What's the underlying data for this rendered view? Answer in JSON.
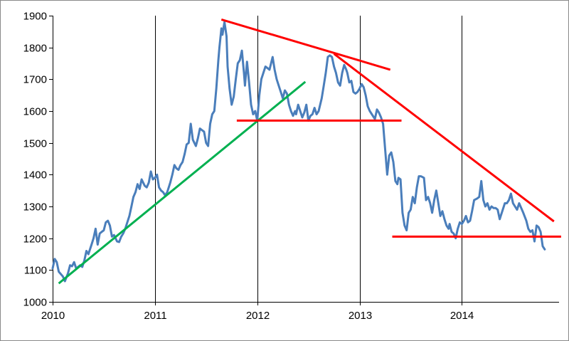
{
  "chart_data": {
    "type": "line",
    "title": "",
    "xlabel": "",
    "ylabel": "",
    "xlim": [
      2010.0,
      2014.95
    ],
    "ylim": [
      1000,
      1900
    ],
    "x_ticks": [
      {
        "value": 2010,
        "label": "2010"
      },
      {
        "value": 2011,
        "label": "2011"
      },
      {
        "value": 2012,
        "label": "2012"
      },
      {
        "value": 2013,
        "label": "2013"
      },
      {
        "value": 2014,
        "label": "2014"
      }
    ],
    "y_ticks": [
      {
        "value": 1000,
        "label": "1000"
      },
      {
        "value": 1100,
        "label": "1100"
      },
      {
        "value": 1200,
        "label": "1200"
      },
      {
        "value": 1300,
        "label": "1300"
      },
      {
        "value": 1400,
        "label": "1400"
      },
      {
        "value": 1500,
        "label": "1500"
      },
      {
        "value": 1600,
        "label": "1600"
      },
      {
        "value": 1700,
        "label": "1700"
      },
      {
        "value": 1800,
        "label": "1800"
      },
      {
        "value": 1900,
        "label": "1900"
      }
    ],
    "grid": {
      "vertical": true,
      "horizontal": false,
      "color": "#000000"
    },
    "series": [
      {
        "color": "#4a7ebb",
        "points": [
          [
            2010.0,
            1105
          ],
          [
            2010.02,
            1135
          ],
          [
            2010.04,
            1125
          ],
          [
            2010.06,
            1095
          ],
          [
            2010.1,
            1080
          ],
          [
            2010.12,
            1065
          ],
          [
            2010.15,
            1090
          ],
          [
            2010.17,
            1115
          ],
          [
            2010.19,
            1112
          ],
          [
            2010.21,
            1125
          ],
          [
            2010.23,
            1105
          ],
          [
            2010.27,
            1115
          ],
          [
            2010.29,
            1110
          ],
          [
            2010.31,
            1130
          ],
          [
            2010.33,
            1160
          ],
          [
            2010.35,
            1150
          ],
          [
            2010.38,
            1180
          ],
          [
            2010.4,
            1200
          ],
          [
            2010.42,
            1230
          ],
          [
            2010.44,
            1180
          ],
          [
            2010.46,
            1215
          ],
          [
            2010.48,
            1220
          ],
          [
            2010.5,
            1225
          ],
          [
            2010.52,
            1250
          ],
          [
            2010.54,
            1255
          ],
          [
            2010.56,
            1240
          ],
          [
            2010.58,
            1205
          ],
          [
            2010.6,
            1210
          ],
          [
            2010.63,
            1190
          ],
          [
            2010.65,
            1188
          ],
          [
            2010.67,
            1205
          ],
          [
            2010.69,
            1215
          ],
          [
            2010.71,
            1230
          ],
          [
            2010.73,
            1250
          ],
          [
            2010.75,
            1270
          ],
          [
            2010.77,
            1300
          ],
          [
            2010.79,
            1330
          ],
          [
            2010.81,
            1345
          ],
          [
            2010.83,
            1370
          ],
          [
            2010.85,
            1355
          ],
          [
            2010.87,
            1385
          ],
          [
            2010.9,
            1365
          ],
          [
            2010.92,
            1360
          ],
          [
            2010.94,
            1375
          ],
          [
            2010.96,
            1410
          ],
          [
            2010.98,
            1385
          ],
          [
            2011.0,
            1390
          ],
          [
            2011.02,
            1400
          ],
          [
            2011.04,
            1360
          ],
          [
            2011.06,
            1350
          ],
          [
            2011.08,
            1345
          ],
          [
            2011.1,
            1335
          ],
          [
            2011.12,
            1345
          ],
          [
            2011.15,
            1375
          ],
          [
            2011.17,
            1400
          ],
          [
            2011.19,
            1430
          ],
          [
            2011.21,
            1420
          ],
          [
            2011.23,
            1415
          ],
          [
            2011.25,
            1430
          ],
          [
            2011.27,
            1440
          ],
          [
            2011.29,
            1465
          ],
          [
            2011.31,
            1495
          ],
          [
            2011.33,
            1500
          ],
          [
            2011.35,
            1560
          ],
          [
            2011.37,
            1510
          ],
          [
            2011.4,
            1490
          ],
          [
            2011.42,
            1515
          ],
          [
            2011.44,
            1545
          ],
          [
            2011.46,
            1540
          ],
          [
            2011.48,
            1535
          ],
          [
            2011.5,
            1500
          ],
          [
            2011.52,
            1490
          ],
          [
            2011.54,
            1560
          ],
          [
            2011.56,
            1590
          ],
          [
            2011.58,
            1600
          ],
          [
            2011.6,
            1670
          ],
          [
            2011.62,
            1760
          ],
          [
            2011.63,
            1800
          ],
          [
            2011.65,
            1860
          ],
          [
            2011.66,
            1840
          ],
          [
            2011.68,
            1880
          ],
          [
            2011.7,
            1835
          ],
          [
            2011.71,
            1740
          ],
          [
            2011.73,
            1670
          ],
          [
            2011.75,
            1620
          ],
          [
            2011.77,
            1645
          ],
          [
            2011.79,
            1700
          ],
          [
            2011.81,
            1750
          ],
          [
            2011.83,
            1760
          ],
          [
            2011.85,
            1790
          ],
          [
            2011.87,
            1720
          ],
          [
            2011.88,
            1680
          ],
          [
            2011.9,
            1755
          ],
          [
            2011.92,
            1690
          ],
          [
            2011.94,
            1620
          ],
          [
            2011.96,
            1590
          ],
          [
            2011.98,
            1600
          ],
          [
            2012.0,
            1570
          ],
          [
            2012.02,
            1650
          ],
          [
            2012.04,
            1700
          ],
          [
            2012.06,
            1720
          ],
          [
            2012.08,
            1740
          ],
          [
            2012.1,
            1735
          ],
          [
            2012.12,
            1730
          ],
          [
            2012.15,
            1770
          ],
          [
            2012.17,
            1730
          ],
          [
            2012.19,
            1700
          ],
          [
            2012.21,
            1680
          ],
          [
            2012.23,
            1660
          ],
          [
            2012.25,
            1640
          ],
          [
            2012.27,
            1665
          ],
          [
            2012.29,
            1655
          ],
          [
            2012.31,
            1620
          ],
          [
            2012.33,
            1600
          ],
          [
            2012.35,
            1585
          ],
          [
            2012.37,
            1600
          ],
          [
            2012.38,
            1590
          ],
          [
            2012.4,
            1620
          ],
          [
            2012.42,
            1600
          ],
          [
            2012.44,
            1580
          ],
          [
            2012.46,
            1595
          ],
          [
            2012.48,
            1620
          ],
          [
            2012.5,
            1570
          ],
          [
            2012.52,
            1585
          ],
          [
            2012.54,
            1590
          ],
          [
            2012.56,
            1610
          ],
          [
            2012.58,
            1590
          ],
          [
            2012.6,
            1600
          ],
          [
            2012.63,
            1640
          ],
          [
            2012.65,
            1680
          ],
          [
            2012.67,
            1720
          ],
          [
            2012.69,
            1770
          ],
          [
            2012.71,
            1775
          ],
          [
            2012.73,
            1770
          ],
          [
            2012.75,
            1740
          ],
          [
            2012.77,
            1720
          ],
          [
            2012.79,
            1690
          ],
          [
            2012.81,
            1680
          ],
          [
            2012.83,
            1720
          ],
          [
            2012.85,
            1745
          ],
          [
            2012.87,
            1730
          ],
          [
            2012.88,
            1720
          ],
          [
            2012.9,
            1690
          ],
          [
            2012.92,
            1695
          ],
          [
            2012.94,
            1660
          ],
          [
            2012.96,
            1655
          ],
          [
            2012.98,
            1660
          ],
          [
            2013.0,
            1670
          ],
          [
            2013.02,
            1685
          ],
          [
            2013.04,
            1675
          ],
          [
            2013.06,
            1650
          ],
          [
            2013.08,
            1615
          ],
          [
            2013.1,
            1600
          ],
          [
            2013.12,
            1590
          ],
          [
            2013.15,
            1575
          ],
          [
            2013.17,
            1605
          ],
          [
            2013.19,
            1595
          ],
          [
            2013.21,
            1580
          ],
          [
            2013.23,
            1560
          ],
          [
            2013.25,
            1480
          ],
          [
            2013.27,
            1400
          ],
          [
            2013.29,
            1460
          ],
          [
            2013.31,
            1470
          ],
          [
            2013.33,
            1440
          ],
          [
            2013.35,
            1380
          ],
          [
            2013.37,
            1370
          ],
          [
            2013.38,
            1390
          ],
          [
            2013.4,
            1385
          ],
          [
            2013.42,
            1280
          ],
          [
            2013.44,
            1240
          ],
          [
            2013.46,
            1225
          ],
          [
            2013.48,
            1280
          ],
          [
            2013.5,
            1290
          ],
          [
            2013.52,
            1330
          ],
          [
            2013.54,
            1310
          ],
          [
            2013.56,
            1360
          ],
          [
            2013.58,
            1395
          ],
          [
            2013.6,
            1395
          ],
          [
            2013.63,
            1390
          ],
          [
            2013.65,
            1320
          ],
          [
            2013.67,
            1330
          ],
          [
            2013.69,
            1310
          ],
          [
            2013.71,
            1280
          ],
          [
            2013.73,
            1320
          ],
          [
            2013.75,
            1350
          ],
          [
            2013.77,
            1310
          ],
          [
            2013.79,
            1270
          ],
          [
            2013.81,
            1285
          ],
          [
            2013.83,
            1260
          ],
          [
            2013.85,
            1240
          ],
          [
            2013.87,
            1230
          ],
          [
            2013.88,
            1245
          ],
          [
            2013.9,
            1220
          ],
          [
            2013.92,
            1215
          ],
          [
            2013.94,
            1200
          ],
          [
            2013.96,
            1230
          ],
          [
            2013.98,
            1250
          ],
          [
            2014.0,
            1245
          ],
          [
            2014.02,
            1255
          ],
          [
            2014.04,
            1270
          ],
          [
            2014.06,
            1250
          ],
          [
            2014.08,
            1255
          ],
          [
            2014.1,
            1285
          ],
          [
            2014.12,
            1320
          ],
          [
            2014.15,
            1325
          ],
          [
            2014.17,
            1330
          ],
          [
            2014.19,
            1380
          ],
          [
            2014.21,
            1320
          ],
          [
            2014.23,
            1300
          ],
          [
            2014.25,
            1310
          ],
          [
            2014.27,
            1290
          ],
          [
            2014.29,
            1300
          ],
          [
            2014.31,
            1295
          ],
          [
            2014.33,
            1295
          ],
          [
            2014.35,
            1290
          ],
          [
            2014.37,
            1260
          ],
          [
            2014.38,
            1270
          ],
          [
            2014.4,
            1290
          ],
          [
            2014.42,
            1310
          ],
          [
            2014.44,
            1310
          ],
          [
            2014.46,
            1320
          ],
          [
            2014.48,
            1340
          ],
          [
            2014.5,
            1310
          ],
          [
            2014.52,
            1300
          ],
          [
            2014.54,
            1290
          ],
          [
            2014.56,
            1310
          ],
          [
            2014.58,
            1295
          ],
          [
            2014.6,
            1280
          ],
          [
            2014.63,
            1255
          ],
          [
            2014.65,
            1230
          ],
          [
            2014.67,
            1220
          ],
          [
            2014.69,
            1225
          ],
          [
            2014.71,
            1190
          ],
          [
            2014.73,
            1240
          ],
          [
            2014.75,
            1235
          ],
          [
            2014.77,
            1220
          ],
          [
            2014.79,
            1175
          ],
          [
            2014.81,
            1165
          ]
        ]
      }
    ],
    "trendlines": [
      {
        "color": "#00b050",
        "from": [
          2010.06,
          1058
        ],
        "to": [
          2012.47,
          1692
        ]
      },
      {
        "color": "#ff0000",
        "from": [
          2011.65,
          1888
        ],
        "to": [
          2013.3,
          1730
        ]
      },
      {
        "color": "#ff0000",
        "from": [
          2012.75,
          1780
        ],
        "to": [
          2014.9,
          1253
        ]
      },
      {
        "color": "#ff0000",
        "from": [
          2011.8,
          1570
        ],
        "to": [
          2013.41,
          1570
        ]
      },
      {
        "color": "#ff0000",
        "from": [
          2013.32,
          1205
        ],
        "to": [
          2014.97,
          1205
        ]
      }
    ]
  }
}
